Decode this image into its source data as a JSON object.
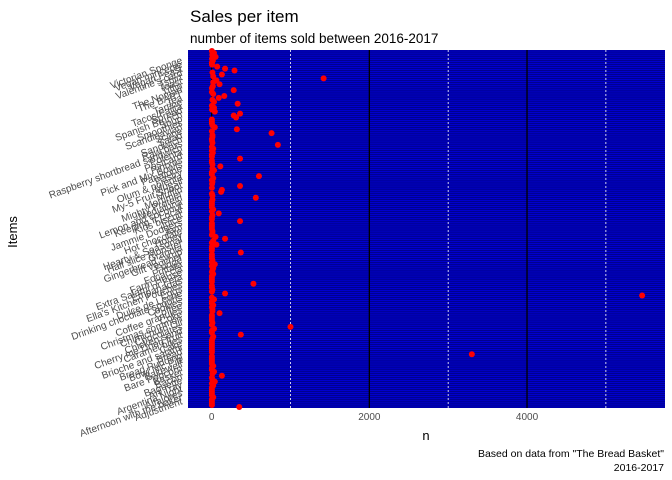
{
  "chart_data": {
    "type": "scatter",
    "title": "Sales per item",
    "subtitle": "number of items sold between 2016-2017",
    "xlabel": "n",
    "ylabel": "Items",
    "caption_lines": [
      "Based on data from \"The Bread Basket\"",
      "2016-2017"
    ],
    "xlim": [
      -300,
      5750
    ],
    "x_ticks": [
      0,
      2000,
      4000
    ],
    "x_tick_labels": [
      "0",
      "2000",
      "4000"
    ],
    "x_minor_gridlines": [
      1000,
      3000,
      5000
    ],
    "grid": true,
    "panel_color": "#0000cd",
    "point_color": "#ff0000",
    "major_grid_color": "#000000",
    "minor_grid_color": "#ffffff",
    "y_labels_visible": [
      "Victorian Sponge",
      "Vegan mincepie",
      "Vegan Feast",
      "Valentine's card",
      "Tshirt",
      "Toast",
      "Tiffin",
      "The Nomad",
      "The BART",
      "Tea",
      "Tartine",
      "Tacos/Fajita",
      "Spread",
      "Spanish Brunch",
      "Soup",
      "Smoothies",
      "Scandinavian",
      "Scone",
      "Salad",
      "Sandwich",
      "Raw bars",
      "Raspberry shortbread sandwich",
      "Polenta",
      "Postcard",
      "Pintxos",
      "Pick and Mix Bowls",
      "Panatone",
      "Pastry",
      "Olum & polenta",
      "Muesli",
      "My-5 Fruit Shoot",
      "Muffin",
      "Mortimer",
      "Mighty Protein",
      "Medialuna",
      "Lemon and coconut",
      "Keeping It Local",
      "Kids biscuit",
      "Juice",
      "Jammie Dodgers",
      "Jam",
      "Hot chocolate",
      "Honey",
      "Hearty & Seasonal",
      "Half slice Monster",
      "Granola",
      "Gingerbread syrup",
      "Gift voucher",
      "Fudge",
      "Frittata",
      "Focaccia",
      "Farm House",
      "Extra Salami or Feta",
      "Empanadas",
      "Ella's Kitchen Pouches",
      "Eggs",
      "Dulce de Leche",
      "Drinking chocolate spoons",
      "Cookies",
      "Coffee",
      "Coffee granules",
      "Coke",
      "Christmas common",
      "Chimichurri Oil",
      "Chocolates",
      "Chicken sand",
      "Cherry me Dried fruit",
      "Caramel bites",
      "Cake",
      "Brioche and salami",
      "Bread",
      "Bread Pudding",
      "Bowl Nic Pitt",
      "Bakewell",
      "Bare Popcorn",
      "Basket",
      "Bacon",
      "Baguette",
      "Art Tray",
      "Argentina Night",
      "Alfajores",
      "Afternoon with the baker",
      "Adjustment"
    ],
    "series": [
      {
        "name": "",
        "x": [
          3,
          30,
          8,
          50,
          5,
          15,
          3,
          5,
          70,
          170,
          290,
          10,
          130,
          20,
          1420,
          60,
          20,
          100,
          15,
          3,
          280,
          3,
          20,
          160,
          90,
          10,
          30,
          330,
          3,
          30,
          5,
          40,
          360,
          280,
          310,
          3,
          3,
          3,
          10,
          40,
          320,
          3,
          760,
          10,
          10,
          3,
          5,
          10,
          840,
          3,
          20,
          3,
          15,
          3,
          3,
          360,
          3,
          3,
          10,
          110,
          10,
          30,
          3,
          3,
          600,
          20,
          3,
          10,
          5,
          360,
          3,
          130,
          120,
          3,
          10,
          560,
          10,
          3,
          3,
          3,
          3,
          20,
          3,
          90,
          10,
          3,
          3,
          360,
          3,
          3,
          3,
          3,
          10,
          10,
          3,
          50,
          170,
          20,
          3,
          60,
          3,
          3,
          3,
          370,
          3,
          3,
          3,
          10,
          3,
          40,
          3,
          20,
          10,
          3,
          20,
          3,
          3,
          3,
          3,
          530,
          3,
          3,
          10,
          3,
          170,
          5460,
          3,
          30,
          3,
          3,
          20,
          3,
          10,
          10,
          100,
          3,
          3,
          3,
          3,
          10,
          3,
          1000,
          30,
          3,
          3,
          370,
          20,
          10,
          3,
          3,
          3,
          3,
          3,
          3,
          3,
          3300,
          3,
          3,
          3,
          3,
          3,
          20,
          3,
          3,
          30,
          10,
          130,
          3,
          10,
          40,
          3,
          20,
          3,
          3,
          3,
          3,
          3,
          20,
          3,
          3,
          3,
          3,
          350
        ]
      }
    ]
  }
}
